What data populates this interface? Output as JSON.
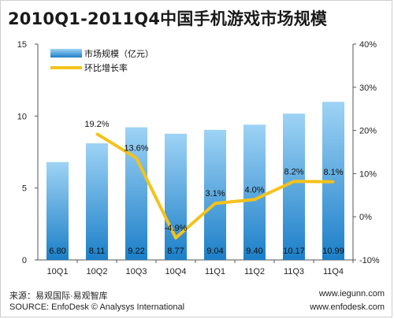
{
  "title": "2010Q1-2011Q4中国手机游戏市场规模",
  "footer": {
    "source_cn": "来源：易观国际·易观智库",
    "source_en": "SOURCE: EnfoDesk © Analysys International",
    "url1": "www.iegunn.com",
    "url2": "www.enfodesk.com"
  },
  "colors": {
    "bar_top": "#9ed3f5",
    "bar_bottom": "#1c7fc8",
    "line": "#f5c21b",
    "axis": "#555555",
    "grid": "#e3e3e3"
  },
  "chart_data": {
    "type": "bar",
    "title": "2010Q1-2011Q4中国手机游戏市场规模",
    "categories": [
      "10Q1",
      "10Q2",
      "10Q3",
      "10Q4",
      "11Q1",
      "11Q2",
      "11Q3",
      "11Q4"
    ],
    "series": [
      {
        "name": "市场规模（亿元）",
        "type": "bar",
        "axis": "left",
        "values": [
          6.8,
          8.11,
          9.22,
          8.77,
          9.04,
          9.4,
          10.17,
          10.99
        ],
        "labels": [
          "6.80",
          "8.11",
          "9.22",
          "8.77",
          "9.04",
          "9.40",
          "10.17",
          "10.99"
        ]
      },
      {
        "name": "环比增长率",
        "type": "line",
        "axis": "right",
        "values": [
          null,
          19.2,
          13.6,
          -4.9,
          3.1,
          4.0,
          8.2,
          8.1
        ],
        "labels": [
          "",
          "19.2%",
          "13.6%",
          "-4.9%",
          "3.1%",
          "4.0%",
          "8.2%",
          "8.1%"
        ]
      }
    ],
    "y_left": {
      "min": 0,
      "max": 15,
      "ticks": [
        0,
        5,
        10,
        15
      ],
      "tick_labels": [
        "0",
        "5",
        "10",
        "15"
      ]
    },
    "y_right": {
      "min": -10,
      "max": 40,
      "ticks": [
        -10,
        0,
        10,
        20,
        30,
        40
      ],
      "tick_labels": [
        "-10%",
        "0%",
        "10%",
        "20%",
        "30%",
        "40%"
      ]
    },
    "legend": "top-left",
    "grid": false
  }
}
